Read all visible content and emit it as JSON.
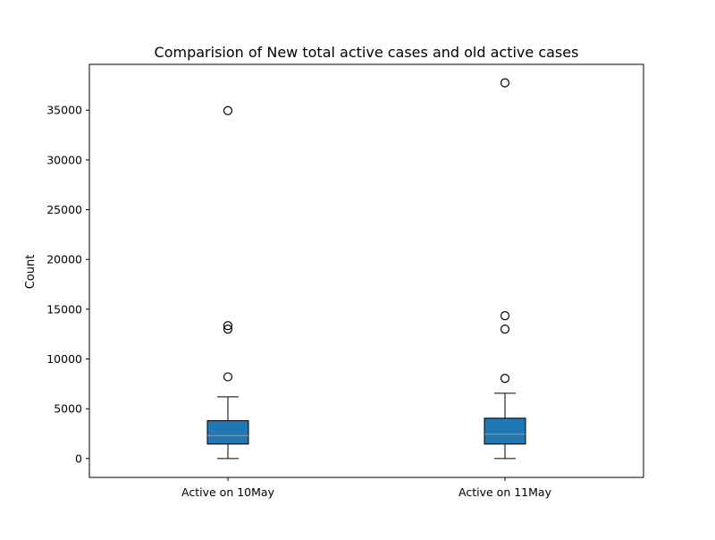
{
  "chart_data": {
    "type": "boxplot",
    "title": "Comparision of New total active cases and old active cases",
    "xlabel": "",
    "ylabel": "Count",
    "ylim": [
      -1900,
      39600
    ],
    "yticks": [
      0,
      5000,
      10000,
      15000,
      20000,
      25000,
      30000,
      35000
    ],
    "grid": false,
    "colors": {
      "box_fill": "#1f77b4",
      "median": "#ff7f0e",
      "edge": "#000000"
    },
    "categories": [
      "Active on 10May",
      "Active on 11May"
    ],
    "boxes": [
      {
        "label": "Active on 10May",
        "whisker_low": 0,
        "q1": 1450,
        "median": 2300,
        "q3": 3800,
        "whisker_high": 6200,
        "outliers": [
          8200,
          13000,
          13350,
          34950
        ]
      },
      {
        "label": "Active on 11May",
        "whisker_low": 0,
        "q1": 1450,
        "median": 2450,
        "q3": 4050,
        "whisker_high": 6550,
        "outliers": [
          8050,
          13000,
          14350,
          37750
        ]
      }
    ]
  }
}
